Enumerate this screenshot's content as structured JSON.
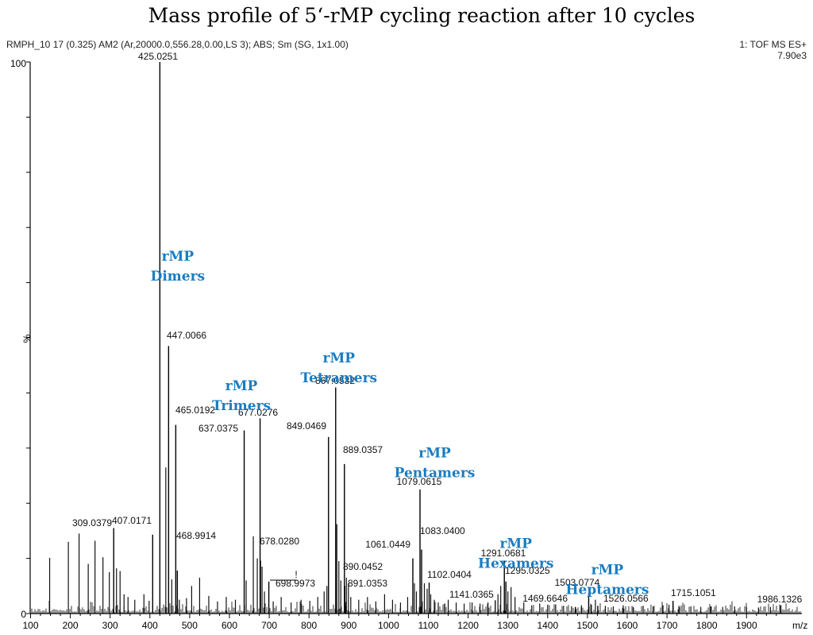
{
  "header": {
    "title": "Mass profile of 5‘-rMP cycling reaction after 10 cycles",
    "scan_info": "RMPH_10 17 (0.325) AM2 (Ar,20000.0,556.28,0.00,LS 3); ABS; Sm (SG, 1x1.00)",
    "instrument": "1: TOF MS ES+",
    "max_intensity": "7.90e3"
  },
  "colors": {
    "annotation": "#1a7cc1",
    "spectrum": "#000000"
  },
  "chart_data": {
    "type": "bar",
    "title": "Mass profile of 5‘-rMP cycling reaction after 10 cycles",
    "xlabel": "m/z",
    "ylabel": "%",
    "xlim": [
      100,
      2000
    ],
    "ylim": [
      0,
      100
    ],
    "x_ticks": [
      100,
      200,
      300,
      400,
      500,
      600,
      700,
      800,
      900,
      1000,
      1100,
      1200,
      1300,
      1400,
      1500,
      1600,
      1700,
      1800,
      1900
    ],
    "y_tick_labels": [
      "0",
      "100"
    ],
    "peaks": [
      {
        "mz": 425.0251,
        "intensity": 100,
        "label": "425.0251"
      },
      {
        "mz": 447.0066,
        "intensity": 48.5,
        "label": "447.0066"
      },
      {
        "mz": 465.0192,
        "intensity": 34.2,
        "label": "465.0192"
      },
      {
        "mz": 468.9914,
        "intensity": 7.8,
        "label": "468.9914"
      },
      {
        "mz": 407.0171,
        "intensity": 14.3,
        "label": "407.0171"
      },
      {
        "mz": 309.0379,
        "intensity": 15.5,
        "label": "309.0379"
      },
      {
        "mz": 637.0375,
        "intensity": 33.2,
        "label": "637.0375"
      },
      {
        "mz": 677.0276,
        "intensity": 35.4,
        "label": "677.0276"
      },
      {
        "mz": 678.028,
        "intensity": 9.6,
        "label": "678.0280"
      },
      {
        "mz": 698.9973,
        "intensity": 5.8,
        "label": "698.9973"
      },
      {
        "mz": 849.0469,
        "intensity": 32.0,
        "label": "849.0469"
      },
      {
        "mz": 867.0532,
        "intensity": 41.0,
        "label": "867.0532"
      },
      {
        "mz": 889.0357,
        "intensity": 27.1,
        "label": "889.0357"
      },
      {
        "mz": 890.0452,
        "intensity": 5.0,
        "label": "890.0452"
      },
      {
        "mz": 891.0353,
        "intensity": 2.1,
        "label": "891.0353"
      },
      {
        "mz": 1061.0449,
        "intensity": 10.0,
        "label": "1061.0449"
      },
      {
        "mz": 1079.0615,
        "intensity": 22.5,
        "label": "1079.0615"
      },
      {
        "mz": 1083.04,
        "intensity": 11.6,
        "label": "1083.0400"
      },
      {
        "mz": 1102.0404,
        "intensity": 5.6,
        "label": "1102.0404"
      },
      {
        "mz": 1141.0365,
        "intensity": 1.8,
        "label": "1141.0365"
      },
      {
        "mz": 1291.0681,
        "intensity": 9.6,
        "label": "1291.0681"
      },
      {
        "mz": 1295.0325,
        "intensity": 5.8,
        "label": "1295.0325"
      },
      {
        "mz": 1469.6646,
        "intensity": 1.2,
        "label": "1469.6646"
      },
      {
        "mz": 1503.0774,
        "intensity": 3.7,
        "label": "1503.0774"
      },
      {
        "mz": 1526.0566,
        "intensity": 1.4,
        "label": "1526.0566"
      },
      {
        "mz": 1715.1051,
        "intensity": 2.3,
        "label": "1715.1051"
      },
      {
        "mz": 1986.1326,
        "intensity": 1.5,
        "label": "1986.1326"
      }
    ],
    "minor_peaks": [
      [
        148,
        10.1
      ],
      [
        195,
        13.0
      ],
      [
        222,
        14.5
      ],
      [
        245,
        9.0
      ],
      [
        262,
        13.2
      ],
      [
        282,
        10.2
      ],
      [
        298,
        7.5
      ],
      [
        316,
        8.2
      ],
      [
        325,
        7.7
      ],
      [
        335,
        3.5
      ],
      [
        345,
        3.0
      ],
      [
        362,
        2.5
      ],
      [
        385,
        3.5
      ],
      [
        398,
        2.3
      ],
      [
        440,
        26.5
      ],
      [
        455,
        6.2
      ],
      [
        474,
        2.5
      ],
      [
        492,
        2.8
      ],
      [
        505,
        5.0
      ],
      [
        525,
        6.5
      ],
      [
        548,
        3.2
      ],
      [
        570,
        2.2
      ],
      [
        592,
        3.0
      ],
      [
        615,
        2.5
      ],
      [
        642,
        6.0
      ],
      [
        660,
        14.0
      ],
      [
        670,
        10.0
      ],
      [
        682,
        8.5
      ],
      [
        688,
        4.0
      ],
      [
        710,
        2.2
      ],
      [
        730,
        3.0
      ],
      [
        755,
        2.0
      ],
      [
        780,
        2.5
      ],
      [
        802,
        2.3
      ],
      [
        822,
        3.0
      ],
      [
        838,
        4.0
      ],
      [
        845,
        5.0
      ],
      [
        870,
        16.2
      ],
      [
        875,
        9.5
      ],
      [
        880,
        6.0
      ],
      [
        894,
        6.5
      ],
      [
        899,
        5.5
      ],
      [
        905,
        3.0
      ],
      [
        925,
        2.5
      ],
      [
        947,
        3.0
      ],
      [
        968,
        2.2
      ],
      [
        990,
        3.5
      ],
      [
        1010,
        2.5
      ],
      [
        1030,
        2.0
      ],
      [
        1048,
        3.0
      ],
      [
        1065,
        5.5
      ],
      [
        1070,
        4.0
      ],
      [
        1090,
        5.5
      ],
      [
        1097,
        4.5
      ],
      [
        1106,
        3.5
      ],
      [
        1115,
        2.5
      ],
      [
        1125,
        2.0
      ],
      [
        1150,
        2.5
      ],
      [
        1170,
        2.0
      ],
      [
        1190,
        1.8
      ],
      [
        1210,
        2.0
      ],
      [
        1230,
        1.8
      ],
      [
        1250,
        2.0
      ],
      [
        1268,
        2.4
      ],
      [
        1275,
        3.5
      ],
      [
        1282,
        5.0
      ],
      [
        1300,
        4.0
      ],
      [
        1308,
        4.8
      ],
      [
        1318,
        3.0
      ],
      [
        1340,
        2.0
      ],
      [
        1360,
        1.5
      ],
      [
        1380,
        1.8
      ],
      [
        1400,
        1.5
      ],
      [
        1420,
        1.6
      ],
      [
        1440,
        1.4
      ],
      [
        1460,
        1.3
      ],
      [
        1485,
        1.5
      ],
      [
        1510,
        1.6
      ],
      [
        1520,
        2.5
      ],
      [
        1545,
        1.4
      ],
      [
        1565,
        1.3
      ],
      [
        1590,
        1.5
      ],
      [
        1615,
        1.2
      ],
      [
        1640,
        1.4
      ],
      [
        1665,
        1.3
      ],
      [
        1690,
        1.5
      ],
      [
        1705,
        1.6
      ],
      [
        1730,
        1.4
      ],
      [
        1760,
        1.3
      ],
      [
        1785,
        1.2
      ],
      [
        1810,
        1.3
      ],
      [
        1840,
        1.2
      ],
      [
        1870,
        1.3
      ],
      [
        1900,
        1.2
      ],
      [
        1930,
        1.1
      ],
      [
        1960,
        1.2
      ]
    ],
    "annotations": [
      {
        "id": "dimers",
        "lines": [
          "rMP",
          "Dimers"
        ],
        "mz": 470,
        "pct": 64
      },
      {
        "id": "trimers",
        "lines": [
          "rMP",
          "Trimers"
        ],
        "mz": 630,
        "pct": 40.5
      },
      {
        "id": "tetramers",
        "lines": [
          "rMP",
          "Tetramers"
        ],
        "mz": 875,
        "pct": 45.5
      },
      {
        "id": "pentamers",
        "lines": [
          "rMP",
          "Pentamers"
        ],
        "mz": 1116,
        "pct": 28.3
      },
      {
        "id": "hexamers",
        "lines": [
          "rMP",
          "Hexamers"
        ],
        "mz": 1320,
        "pct": 11.9
      },
      {
        "id": "heptamers",
        "lines": [
          "rMP",
          "Heptamers"
        ],
        "mz": 1550,
        "pct": 7.1
      }
    ],
    "marker_symbol": "!"
  }
}
